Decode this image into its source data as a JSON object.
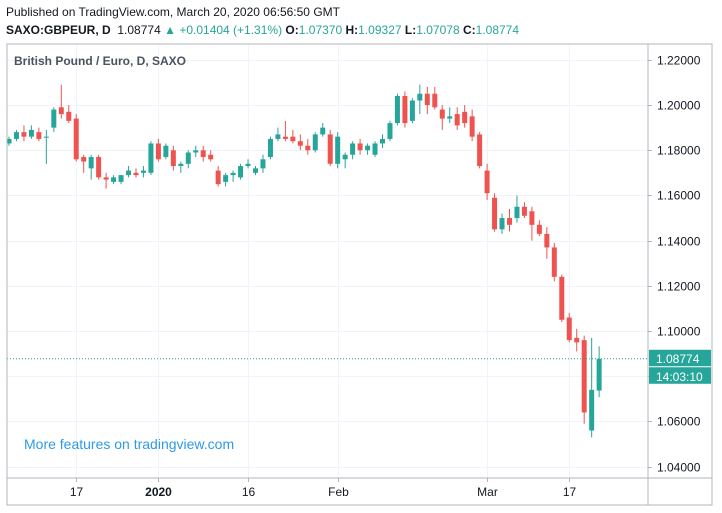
{
  "header": {
    "published": "Published on TradingView.com, March 20, 2020 06:56:50 GMT",
    "symbol": "SAXO:GBPEUR, D",
    "last": "1.08774",
    "arrow": "▲",
    "change": "+0.01404 (+1.31%)",
    "o_label": "O:",
    "o_value": "1.07370",
    "h_label": "H:",
    "h_value": "1.09327",
    "l_label": "L:",
    "l_value": "1.07078",
    "c_label": "C:",
    "c_value": "1.08774"
  },
  "watermark": "More features on tradingview.com",
  "price_tag": {
    "price": "1.08774",
    "countdown": "14:03:10"
  },
  "colors": {
    "up": "#26a69a",
    "down": "#ef5350",
    "grid": "#f0f3fa",
    "border": "#b2b5be",
    "link": "#2e9be5"
  },
  "chart_data": {
    "type": "candlestick",
    "title": "British Pound / Euro, D, SAXO",
    "ylim": [
      1.035,
      1.227
    ],
    "y_ticks": [
      "1.22000",
      "1.20000",
      "1.18000",
      "1.16000",
      "1.14000",
      "1.12000",
      "1.10000",
      "1.08000",
      "1.06000",
      "1.04000"
    ],
    "y_tick_values": [
      1.22,
      1.2,
      1.18,
      1.16,
      1.14,
      1.12,
      1.1,
      1.08,
      1.06,
      1.04
    ],
    "x_ticks": [
      {
        "label": "17",
        "index": 9,
        "bold": false
      },
      {
        "label": "2020",
        "index": 20,
        "bold": true
      },
      {
        "label": "16",
        "index": 32,
        "bold": false
      },
      {
        "label": "Feb",
        "index": 44,
        "bold": false
      },
      {
        "label": "Mar",
        "index": 64,
        "bold": false
      },
      {
        "label": "17",
        "index": 75,
        "bold": false
      }
    ],
    "current_price": 1.08774,
    "candles": [
      {
        "o": 1.183,
        "h": 1.186,
        "l": 1.182,
        "c": 1.185
      },
      {
        "o": 1.185,
        "h": 1.189,
        "l": 1.184,
        "c": 1.188
      },
      {
        "o": 1.188,
        "h": 1.191,
        "l": 1.184,
        "c": 1.186
      },
      {
        "o": 1.186,
        "h": 1.191,
        "l": 1.185,
        "c": 1.189
      },
      {
        "o": 1.188,
        "h": 1.19,
        "l": 1.184,
        "c": 1.185
      },
      {
        "o": 1.186,
        "h": 1.189,
        "l": 1.174,
        "c": 1.186
      },
      {
        "o": 1.19,
        "h": 1.199,
        "l": 1.188,
        "c": 1.198
      },
      {
        "o": 1.199,
        "h": 1.209,
        "l": 1.194,
        "c": 1.196
      },
      {
        "o": 1.197,
        "h": 1.2,
        "l": 1.192,
        "c": 1.193
      },
      {
        "o": 1.194,
        "h": 1.196,
        "l": 1.175,
        "c": 1.176
      },
      {
        "o": 1.177,
        "h": 1.178,
        "l": 1.17,
        "c": 1.175
      },
      {
        "o": 1.172,
        "h": 1.178,
        "l": 1.167,
        "c": 1.177
      },
      {
        "o": 1.177,
        "h": 1.178,
        "l": 1.167,
        "c": 1.168
      },
      {
        "o": 1.168,
        "h": 1.17,
        "l": 1.163,
        "c": 1.167
      },
      {
        "o": 1.166,
        "h": 1.169,
        "l": 1.165,
        "c": 1.168
      },
      {
        "o": 1.166,
        "h": 1.169,
        "l": 1.165,
        "c": 1.169
      },
      {
        "o": 1.169,
        "h": 1.173,
        "l": 1.168,
        "c": 1.171
      },
      {
        "o": 1.17,
        "h": 1.172,
        "l": 1.168,
        "c": 1.169
      },
      {
        "o": 1.17,
        "h": 1.173,
        "l": 1.168,
        "c": 1.171
      },
      {
        "o": 1.17,
        "h": 1.184,
        "l": 1.169,
        "c": 1.183
      },
      {
        "o": 1.183,
        "h": 1.185,
        "l": 1.175,
        "c": 1.176
      },
      {
        "o": 1.177,
        "h": 1.183,
        "l": 1.176,
        "c": 1.182
      },
      {
        "o": 1.18,
        "h": 1.182,
        "l": 1.171,
        "c": 1.173
      },
      {
        "o": 1.173,
        "h": 1.175,
        "l": 1.17,
        "c": 1.174
      },
      {
        "o": 1.174,
        "h": 1.18,
        "l": 1.172,
        "c": 1.179
      },
      {
        "o": 1.179,
        "h": 1.182,
        "l": 1.177,
        "c": 1.18
      },
      {
        "o": 1.18,
        "h": 1.182,
        "l": 1.175,
        "c": 1.177
      },
      {
        "o": 1.178,
        "h": 1.18,
        "l": 1.175,
        "c": 1.176
      },
      {
        "o": 1.171,
        "h": 1.173,
        "l": 1.164,
        "c": 1.165
      },
      {
        "o": 1.166,
        "h": 1.17,
        "l": 1.164,
        "c": 1.169
      },
      {
        "o": 1.169,
        "h": 1.171,
        "l": 1.166,
        "c": 1.17
      },
      {
        "o": 1.168,
        "h": 1.174,
        "l": 1.167,
        "c": 1.173
      },
      {
        "o": 1.173,
        "h": 1.176,
        "l": 1.172,
        "c": 1.174
      },
      {
        "o": 1.17,
        "h": 1.173,
        "l": 1.169,
        "c": 1.172
      },
      {
        "o": 1.172,
        "h": 1.178,
        "l": 1.17,
        "c": 1.176
      },
      {
        "o": 1.177,
        "h": 1.186,
        "l": 1.176,
        "c": 1.185
      },
      {
        "o": 1.185,
        "h": 1.19,
        "l": 1.184,
        "c": 1.187
      },
      {
        "o": 1.186,
        "h": 1.193,
        "l": 1.184,
        "c": 1.185
      },
      {
        "o": 1.186,
        "h": 1.189,
        "l": 1.183,
        "c": 1.184
      },
      {
        "o": 1.184,
        "h": 1.187,
        "l": 1.18,
        "c": 1.182
      },
      {
        "o": 1.182,
        "h": 1.185,
        "l": 1.178,
        "c": 1.18
      },
      {
        "o": 1.18,
        "h": 1.188,
        "l": 1.179,
        "c": 1.187
      },
      {
        "o": 1.187,
        "h": 1.192,
        "l": 1.186,
        "c": 1.19
      },
      {
        "o": 1.187,
        "h": 1.189,
        "l": 1.173,
        "c": 1.174
      },
      {
        "o": 1.174,
        "h": 1.188,
        "l": 1.172,
        "c": 1.186
      },
      {
        "o": 1.176,
        "h": 1.179,
        "l": 1.172,
        "c": 1.178
      },
      {
        "o": 1.178,
        "h": 1.184,
        "l": 1.176,
        "c": 1.183
      },
      {
        "o": 1.183,
        "h": 1.185,
        "l": 1.178,
        "c": 1.18
      },
      {
        "o": 1.18,
        "h": 1.183,
        "l": 1.178,
        "c": 1.182
      },
      {
        "o": 1.178,
        "h": 1.184,
        "l": 1.177,
        "c": 1.183
      },
      {
        "o": 1.183,
        "h": 1.187,
        "l": 1.181,
        "c": 1.185
      },
      {
        "o": 1.185,
        "h": 1.193,
        "l": 1.184,
        "c": 1.192
      },
      {
        "o": 1.192,
        "h": 1.205,
        "l": 1.191,
        "c": 1.204
      },
      {
        "o": 1.204,
        "h": 1.206,
        "l": 1.19,
        "c": 1.192
      },
      {
        "o": 1.193,
        "h": 1.203,
        "l": 1.192,
        "c": 1.202
      },
      {
        "o": 1.202,
        "h": 1.209,
        "l": 1.196,
        "c": 1.205
      },
      {
        "o": 1.205,
        "h": 1.208,
        "l": 1.196,
        "c": 1.2
      },
      {
        "o": 1.205,
        "h": 1.208,
        "l": 1.198,
        "c": 1.199
      },
      {
        "o": 1.198,
        "h": 1.2,
        "l": 1.189,
        "c": 1.194
      },
      {
        "o": 1.194,
        "h": 1.199,
        "l": 1.192,
        "c": 1.195
      },
      {
        "o": 1.196,
        "h": 1.199,
        "l": 1.189,
        "c": 1.191
      },
      {
        "o": 1.197,
        "h": 1.2,
        "l": 1.19,
        "c": 1.192
      },
      {
        "o": 1.195,
        "h": 1.198,
        "l": 1.184,
        "c": 1.186
      },
      {
        "o": 1.187,
        "h": 1.188,
        "l": 1.172,
        "c": 1.173
      },
      {
        "o": 1.171,
        "h": 1.174,
        "l": 1.158,
        "c": 1.161
      },
      {
        "o": 1.159,
        "h": 1.161,
        "l": 1.144,
        "c": 1.145
      },
      {
        "o": 1.145,
        "h": 1.152,
        "l": 1.143,
        "c": 1.15
      },
      {
        "o": 1.15,
        "h": 1.154,
        "l": 1.144,
        "c": 1.147
      },
      {
        "o": 1.15,
        "h": 1.16,
        "l": 1.148,
        "c": 1.155
      },
      {
        "o": 1.155,
        "h": 1.157,
        "l": 1.15,
        "c": 1.151
      },
      {
        "o": 1.153,
        "h": 1.155,
        "l": 1.14,
        "c": 1.147
      },
      {
        "o": 1.147,
        "h": 1.149,
        "l": 1.142,
        "c": 1.143
      },
      {
        "o": 1.143,
        "h": 1.146,
        "l": 1.132,
        "c": 1.137
      },
      {
        "o": 1.137,
        "h": 1.139,
        "l": 1.122,
        "c": 1.124
      },
      {
        "o": 1.124,
        "h": 1.125,
        "l": 1.104,
        "c": 1.105
      },
      {
        "o": 1.106,
        "h": 1.108,
        "l": 1.095,
        "c": 1.096
      },
      {
        "o": 1.097,
        "h": 1.101,
        "l": 1.091,
        "c": 1.095
      },
      {
        "o": 1.096,
        "h": 1.098,
        "l": 1.059,
        "c": 1.064
      },
      {
        "o": 1.056,
        "h": 1.097,
        "l": 1.053,
        "c": 1.074
      },
      {
        "o": 1.0737,
        "h": 1.09327,
        "l": 1.07078,
        "c": 1.08774
      }
    ]
  }
}
